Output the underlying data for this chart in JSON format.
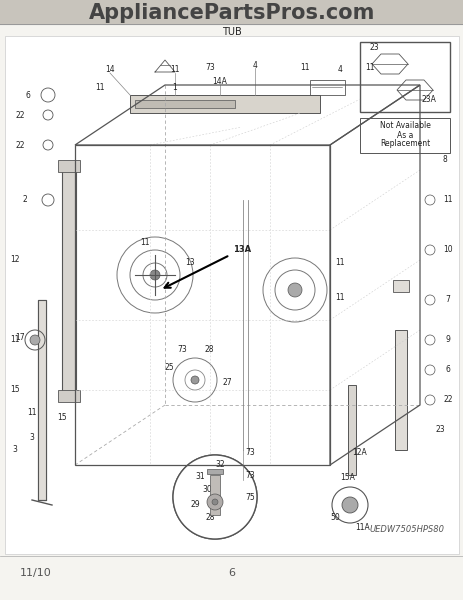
{
  "bg_color": "#f5f4f0",
  "header_bg": "#c8c4bc",
  "header_text": "AppliancePartsPros.com",
  "header_text_color": "#444444",
  "subtitle": "TUB",
  "footer_left": "11/10",
  "footer_center": "6",
  "model_text": "UEDW7505HPS80",
  "diagram_bg": "#ffffff",
  "line_color": "#555555",
  "dashed_color": "#aaaaaa",
  "text_color": "#222222",
  "not_avail": [
    "Not Available",
    "As a",
    "Replacement"
  ],
  "figw": 4.64,
  "figh": 6.0,
  "dpi": 100
}
